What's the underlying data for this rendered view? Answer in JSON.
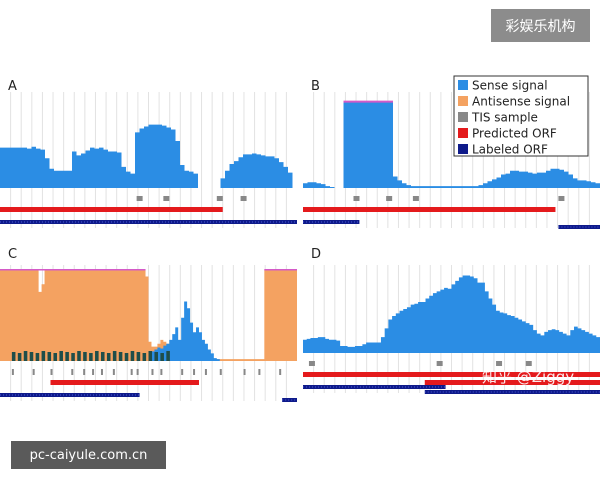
{
  "watermarks": {
    "top_right": "彩娱乐机构",
    "bottom_left": "pc-caiyule.com.cn",
    "center_right": "知乎 @Ziggy"
  },
  "colors": {
    "sense": "#2b8de4",
    "antisense": "#f4a261",
    "tis": "#888888",
    "predicted": "#e41a1c",
    "labeled": "#0e1a8a",
    "dark_green": "#1f4e4a"
  },
  "chart_data": {
    "type": "area",
    "legend": {
      "placement": "top-right",
      "items": [
        {
          "name": "Sense signal",
          "color": "#2b8de4"
        },
        {
          "name": "Antisense signal",
          "color": "#f4a261"
        },
        {
          "name": "TIS sample",
          "color": "#888888"
        },
        {
          "name": "Predicted ORF",
          "color": "#e41a1c"
        },
        {
          "name": "Labeled ORF",
          "color": "#0e1a8a"
        }
      ]
    },
    "panels": [
      {
        "label": "A",
        "sense": [
          0.42,
          0.42,
          0.42,
          0.42,
          0.42,
          0.42,
          0.41,
          0.43,
          0.41,
          0.4,
          0.31,
          0.2,
          0.18,
          0.18,
          0.18,
          0.18,
          0.38,
          0.34,
          0.36,
          0.39,
          0.42,
          0.41,
          0.42,
          0.4,
          0.38,
          0.38,
          0.37,
          0.22,
          0.17,
          0.15,
          0.58,
          0.62,
          0.64,
          0.66,
          0.66,
          0.66,
          0.65,
          0.63,
          0.61,
          0.49,
          0.24,
          0.18,
          0.17,
          0.15,
          0.0,
          0.0,
          0.0,
          0.0,
          0.0,
          0.1,
          0.18,
          0.25,
          0.28,
          0.32,
          0.35,
          0.35,
          0.36,
          0.35,
          0.34,
          0.33,
          0.33,
          0.31,
          0.27,
          0.22,
          0.16,
          0.0
        ],
        "antisense": [
          0.02,
          0.02,
          0.02,
          0.02,
          0.02,
          0.02,
          0.02,
          0.02,
          0.02,
          0.02,
          0.02,
          0.02,
          0.02,
          0.02,
          0.02,
          0.02,
          0.02,
          0.02,
          0.02,
          0.02,
          0.02,
          0,
          0,
          0,
          0,
          0,
          0,
          0,
          0,
          0,
          0,
          0,
          0,
          0,
          0,
          0,
          0,
          0,
          0,
          0,
          0,
          0,
          0,
          0,
          0,
          0,
          0,
          0,
          0,
          0,
          0,
          0,
          0,
          0,
          0,
          0,
          0,
          0,
          0,
          0,
          0,
          0,
          0,
          0,
          0,
          0
        ],
        "tis": [
          0.46,
          0.55,
          0.73,
          0.81
        ],
        "predicted_orf": [
          [
            0.0,
            0.75
          ]
        ],
        "labeled_orf": [
          [
            0.0,
            1.0
          ]
        ]
      },
      {
        "label": "B",
        "sense": [
          0.05,
          0.06,
          0.06,
          0.05,
          0.04,
          0.02,
          0.01,
          0.0,
          0.0,
          0.9,
          0.9,
          0.9,
          0.9,
          0.9,
          0.9,
          0.9,
          0.9,
          0.9,
          0.9,
          0.9,
          0.12,
          0.08,
          0.05,
          0.03,
          0.02,
          0.02,
          0.02,
          0.02,
          0.02,
          0.02,
          0.02,
          0.02,
          0.02,
          0.02,
          0.02,
          0.02,
          0.02,
          0.02,
          0.02,
          0.03,
          0.05,
          0.07,
          0.09,
          0.11,
          0.14,
          0.15,
          0.18,
          0.18,
          0.17,
          0.17,
          0.16,
          0.15,
          0.16,
          0.16,
          0.18,
          0.2,
          0.2,
          0.19,
          0.17,
          0.14,
          0.1,
          0.08,
          0.08,
          0.07,
          0.06,
          0.05
        ],
        "antisense": [],
        "tis": [
          0.17,
          0.28,
          0.37,
          0.86
        ],
        "predicted_orf": [
          [
            0.0,
            0.85
          ]
        ],
        "labeled_orf": [
          [
            0.0,
            0.19
          ],
          [
            0.86,
            1.0
          ]
        ]
      },
      {
        "label": "C",
        "sense": [
          0,
          0,
          0,
          0,
          0,
          0,
          0,
          0,
          0,
          0,
          0,
          0,
          0,
          0,
          0,
          0,
          0,
          0,
          0,
          0,
          0,
          0,
          0,
          0,
          0,
          0,
          0,
          0,
          0,
          0,
          0,
          0,
          0,
          0,
          0,
          0,
          0,
          0,
          0,
          0,
          0,
          0,
          0,
          0,
          0,
          0,
          0,
          0,
          0,
          0,
          0.08,
          0.1,
          0.12,
          0.14,
          0.13,
          0.16,
          0.18,
          0.22,
          0.28,
          0.35,
          0.22,
          0.45,
          0.62,
          0.55,
          0.4,
          0.3,
          0.35,
          0.3,
          0.22,
          0.18,
          0.12,
          0.08,
          0.03,
          0.02,
          0,
          0,
          0,
          0,
          0,
          0,
          0,
          0,
          0,
          0,
          0,
          0,
          0,
          0,
          0,
          0,
          0,
          0,
          0,
          0,
          0,
          0,
          0,
          0,
          0,
          0
        ],
        "antisense": [
          0.95,
          0.95,
          0.95,
          0.95,
          0.95,
          0.95,
          0.95,
          0.95,
          0.95,
          0.95,
          0.95,
          0.95,
          0.95,
          0.72,
          0.8,
          0.95,
          0.95,
          0.95,
          0.95,
          0.95,
          0.95,
          0.95,
          0.95,
          0.95,
          0.95,
          0.95,
          0.95,
          0.95,
          0.95,
          0.95,
          0.95,
          0.95,
          0.95,
          0.95,
          0.95,
          0.95,
          0.95,
          0.95,
          0.95,
          0.95,
          0.95,
          0.95,
          0.95,
          0.95,
          0.95,
          0.95,
          0.95,
          0.95,
          0.95,
          0.88,
          0.2,
          0.15,
          0.15,
          0.18,
          0.22,
          0.2,
          0.18,
          0.12,
          0.1,
          0.08,
          0.06,
          0.04,
          0.04,
          0.05,
          0.03,
          0.03,
          0.02,
          0.02,
          0.02,
          0.02,
          0.02,
          0.02,
          0.02,
          0.02,
          0.02,
          0.02,
          0.02,
          0.02,
          0.02,
          0.02,
          0.02,
          0.02,
          0.02,
          0.02,
          0.02,
          0.02,
          0.02,
          0.02,
          0.02,
          0.95,
          0.95,
          0.95,
          0.95,
          0.95,
          0.95,
          0.95,
          0.95,
          0.95,
          0.95,
          0.95
        ],
        "tis": [
          0.04,
          0.11,
          0.17,
          0.24,
          0.28,
          0.31,
          0.34,
          0.38,
          0.44,
          0.46,
          0.51,
          0.54,
          0.61,
          0.65,
          0.69,
          0.74,
          0.82,
          0.87,
          0.94
        ],
        "predicted_orf": [
          [
            0.17,
            0.67
          ]
        ],
        "labeled_orf": [
          [
            0.0,
            0.47
          ],
          [
            0.95,
            1.0
          ]
        ]
      },
      {
        "label": "D",
        "sense": [
          0.15,
          0.16,
          0.17,
          0.17,
          0.18,
          0.18,
          0.16,
          0.15,
          0.15,
          0.14,
          0.08,
          0.08,
          0.07,
          0.07,
          0.08,
          0.08,
          0.1,
          0.12,
          0.12,
          0.12,
          0.12,
          0.18,
          0.28,
          0.38,
          0.42,
          0.45,
          0.48,
          0.5,
          0.52,
          0.55,
          0.56,
          0.58,
          0.58,
          0.62,
          0.65,
          0.68,
          0.7,
          0.72,
          0.74,
          0.73,
          0.78,
          0.82,
          0.86,
          0.88,
          0.88,
          0.87,
          0.85,
          0.8,
          0.8,
          0.7,
          0.62,
          0.55,
          0.48,
          0.46,
          0.45,
          0.43,
          0.42,
          0.4,
          0.38,
          0.36,
          0.34,
          0.32,
          0.26,
          0.22,
          0.2,
          0.24,
          0.26,
          0.27,
          0.26,
          0.24,
          0.22,
          0.2,
          0.26,
          0.3,
          0.28,
          0.26,
          0.24,
          0.22,
          0.2,
          0.18
        ],
        "antisense": [],
        "tis": [
          0.02,
          0.45,
          0.65,
          0.75
        ],
        "predicted_orf": [
          [
            0.0,
            1.0
          ],
          [
            0.41,
            1.0
          ]
        ],
        "labeled_orf": [
          [
            0.0,
            0.48
          ],
          [
            0.41,
            1.0
          ]
        ]
      }
    ]
  }
}
